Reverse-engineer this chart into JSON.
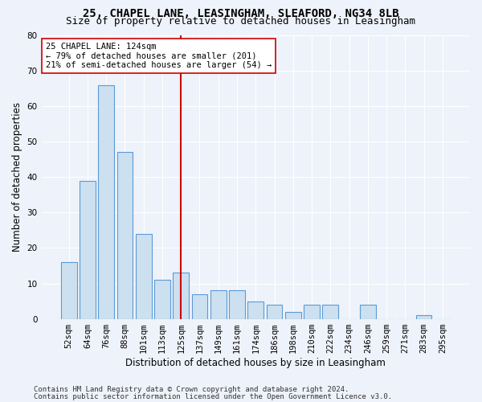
{
  "title_line1": "25, CHAPEL LANE, LEASINGHAM, SLEAFORD, NG34 8LB",
  "title_line2": "Size of property relative to detached houses in Leasingham",
  "xlabel": "Distribution of detached houses by size in Leasingham",
  "ylabel": "Number of detached properties",
  "bar_labels": [
    "52sqm",
    "64sqm",
    "76sqm",
    "88sqm",
    "101sqm",
    "113sqm",
    "125sqm",
    "137sqm",
    "149sqm",
    "161sqm",
    "174sqm",
    "186sqm",
    "198sqm",
    "210sqm",
    "222sqm",
    "234sqm",
    "246sqm",
    "259sqm",
    "271sqm",
    "283sqm",
    "295sqm"
  ],
  "bar_values": [
    16,
    39,
    66,
    47,
    24,
    11,
    13,
    7,
    8,
    8,
    5,
    4,
    2,
    4,
    4,
    0,
    4,
    0,
    0,
    1,
    0
  ],
  "bar_color": "#cce0f0",
  "bar_edge_color": "#5b9bd5",
  "vline_x": 6,
  "vline_color": "#cc0000",
  "annotation_line1": "25 CHAPEL LANE: 124sqm",
  "annotation_line2": "← 79% of detached houses are smaller (201)",
  "annotation_line3": "21% of semi-detached houses are larger (54) →",
  "annotation_box_color": "#ffffff",
  "annotation_box_edge": "#cc0000",
  "ylim": [
    0,
    80
  ],
  "yticks": [
    0,
    10,
    20,
    30,
    40,
    50,
    60,
    70,
    80
  ],
  "footer_line1": "Contains HM Land Registry data © Crown copyright and database right 2024.",
  "footer_line2": "Contains public sector information licensed under the Open Government Licence v3.0.",
  "bg_color": "#eef2fa",
  "plot_bg_color": "#eef2fa",
  "grid_color": "#ffffff",
  "title_fontsize": 10,
  "subtitle_fontsize": 9,
  "axis_label_fontsize": 8.5,
  "tick_fontsize": 7.5,
  "annotation_fontsize": 7.5,
  "footer_fontsize": 6.5
}
